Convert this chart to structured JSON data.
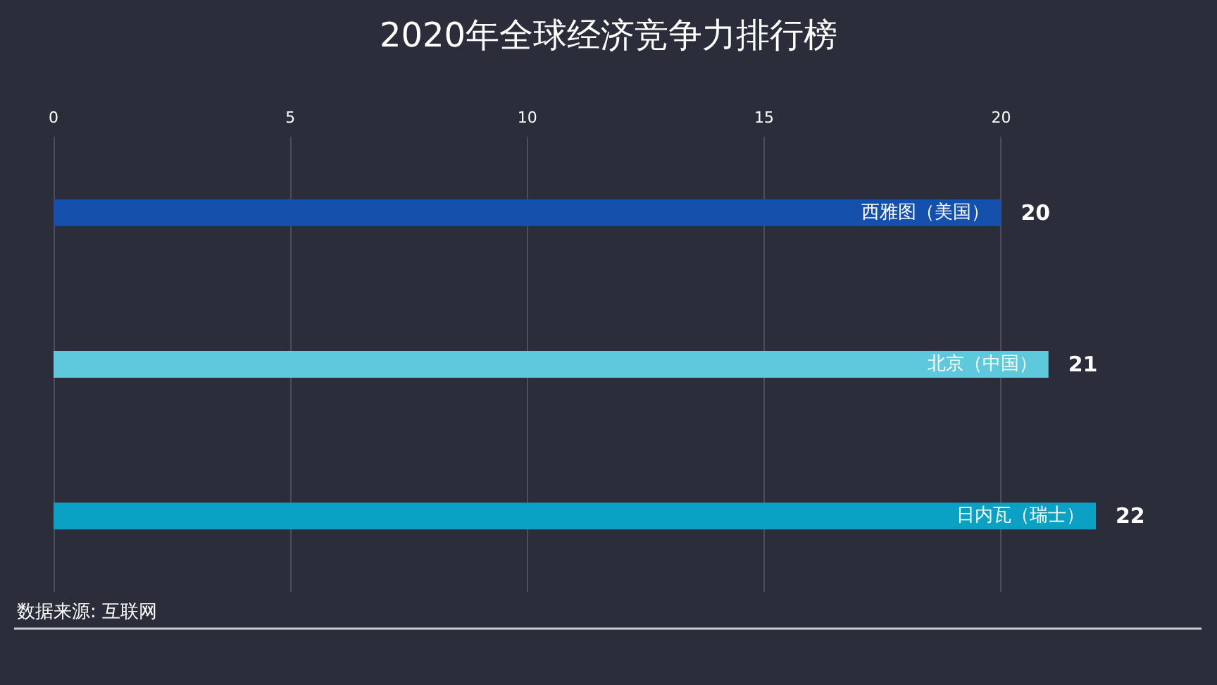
{
  "chart_data": {
    "type": "bar",
    "orientation": "horizontal",
    "title": "2020年全球经济竞争力排行榜",
    "categories": [
      "西雅图（美国）",
      "北京（中国）",
      "日内瓦（瑞士）"
    ],
    "values": [
      20,
      21,
      22
    ],
    "colors": [
      "#1450ac",
      "#5ec9dc",
      "#0aa1c4"
    ],
    "data_labels": true,
    "xlim": [
      0,
      22
    ],
    "xticks": [
      0,
      5,
      10,
      15,
      20
    ],
    "grid": "x",
    "annotations": [
      "数据来源: 互联网"
    ]
  }
}
